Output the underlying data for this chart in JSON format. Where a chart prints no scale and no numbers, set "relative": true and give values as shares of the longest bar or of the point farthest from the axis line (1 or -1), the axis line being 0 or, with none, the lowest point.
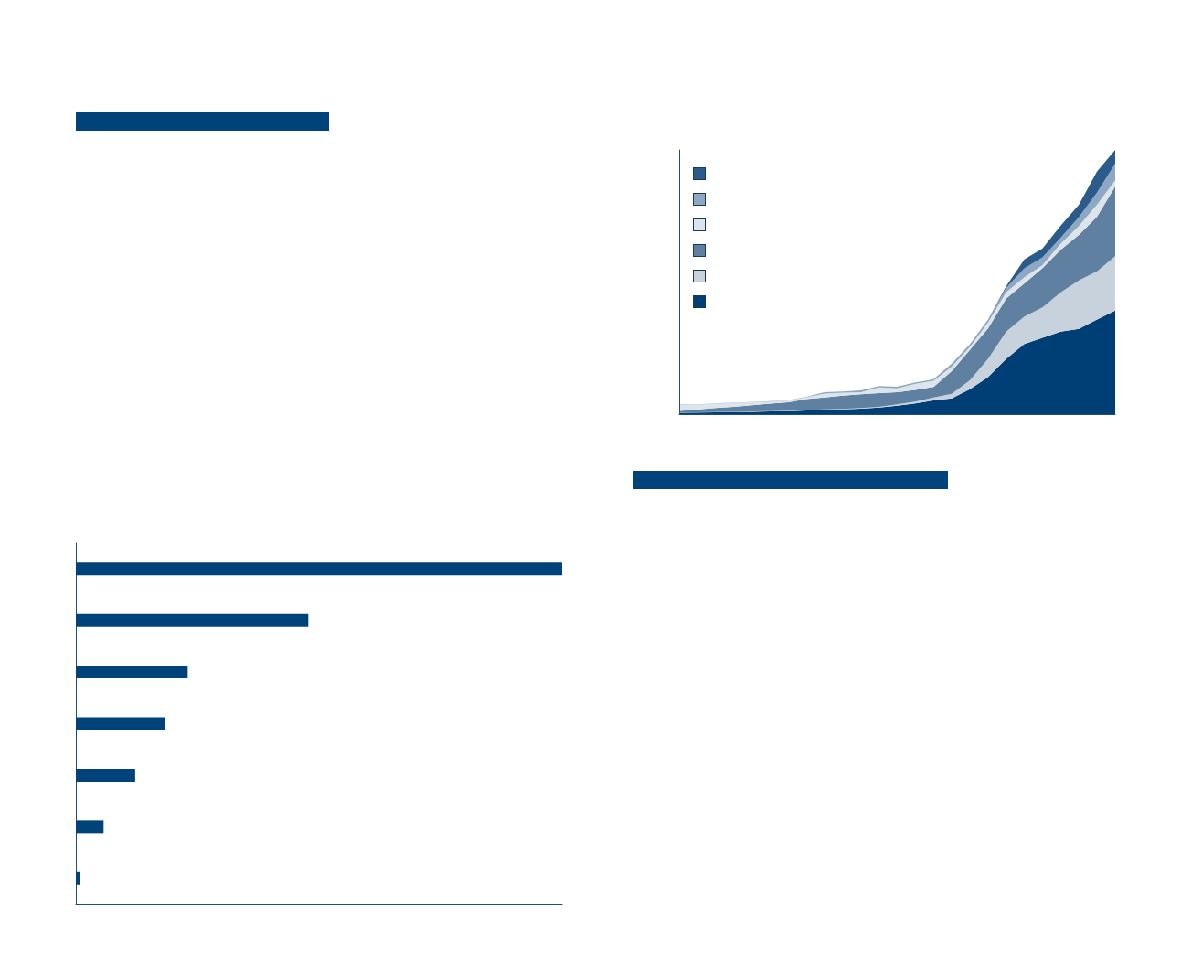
{
  "chart_data": [
    {
      "type": "area",
      "relative": true,
      "stacked": true,
      "categories": [
        null,
        null,
        null,
        null,
        null,
        null,
        null,
        null,
        null,
        null,
        null,
        null,
        null,
        null,
        null,
        null,
        null,
        null,
        null,
        null,
        null,
        null,
        null,
        null,
        null
      ],
      "series": [
        {
          "color": "#003f75",
          "values": [
            0.005,
            0.006,
            0.007,
            0.008,
            0.009,
            0.01,
            0.011,
            0.014,
            0.016,
            0.018,
            0.021,
            0.025,
            0.032,
            0.041,
            0.052,
            0.06,
            0.094,
            0.14,
            0.209,
            0.266,
            0.289,
            0.312,
            0.323,
            0.358,
            0.392
          ]
        },
        {
          "color": "#c8d2dc",
          "values": [
            0.001,
            0.001,
            0.001,
            0.001,
            0.001,
            0.001,
            0.002,
            0.002,
            0.002,
            0.002,
            0.002,
            0.003,
            0.005,
            0.007,
            0.011,
            0.017,
            0.034,
            0.069,
            0.103,
            0.103,
            0.115,
            0.149,
            0.183,
            0.183,
            0.206
          ]
        },
        {
          "color": "#5f80a1",
          "values": [
            0.006,
            0.01,
            0.015,
            0.019,
            0.024,
            0.029,
            0.032,
            0.041,
            0.045,
            0.05,
            0.052,
            0.052,
            0.046,
            0.044,
            0.04,
            0.086,
            0.115,
            0.115,
            0.126,
            0.126,
            0.149,
            0.161,
            0.172,
            0.206,
            0.264
          ]
        },
        {
          "color": "#dde4ec",
          "values": [
            0.023,
            0.019,
            0.017,
            0.015,
            0.011,
            0.008,
            0.007,
            0.007,
            0.015,
            0.011,
            0.008,
            0.021,
            0.015,
            0.023,
            0.023,
            0.017,
            0.011,
            0.023,
            0.023,
            0.023,
            0.011,
            0.023,
            0.034,
            0.046,
            0.023
          ]
        },
        {
          "color": "#8ea7c2",
          "values": [
            0.001,
            0.001,
            0.001,
            0.001,
            0.001,
            0.001,
            0.001,
            0.002,
            0.005,
            0.005,
            0.007,
            0.005,
            0.006,
            0.005,
            0.006,
            0.011,
            0.011,
            0.011,
            0.017,
            0.034,
            0.029,
            0.023,
            0.034,
            0.046,
            0.063
          ]
        },
        {
          "color": "#2b5b8a",
          "values": [
            0,
            0,
            0,
            0,
            0,
            0,
            0,
            0,
            0,
            0,
            0,
            0,
            0,
            0,
            0,
            0,
            0,
            0,
            0.006,
            0.034,
            0.034,
            0.046,
            0.046,
            0.08,
            0.052
          ]
        }
      ]
    },
    {
      "type": "bar",
      "orientation": "horizontal",
      "relative": true,
      "color": "#00427a",
      "categories": [
        null,
        null,
        null,
        null,
        null,
        null,
        null
      ],
      "values": [
        1,
        0.478,
        0.23,
        0.183,
        0.122,
        0.057,
        0.008
      ]
    }
  ]
}
